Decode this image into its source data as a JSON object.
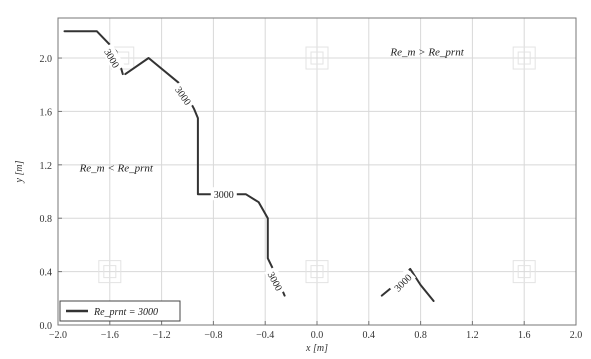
{
  "chart_data": {
    "type": "line",
    "title": "",
    "xlabel": "x [m]",
    "ylabel": "y [m]",
    "xlim": [
      -2.0,
      2.0
    ],
    "ylim": [
      0.0,
      2.3
    ],
    "xticks": [
      -2.0,
      -1.6,
      -1.2,
      -0.8,
      -0.4,
      0.0,
      0.4,
      0.8,
      1.2,
      1.6,
      2.0
    ],
    "yticks": [
      0.0,
      0.4,
      0.8,
      1.2,
      1.6,
      2.0
    ],
    "xtick_labels": [
      "−2.0",
      "−1.6",
      "−1.2",
      "−0.8",
      "−0.4",
      "0.0",
      "0.4",
      "0.8",
      "1.2",
      "1.6",
      "2.0"
    ],
    "ytick_labels": [
      "0.0",
      "0.4",
      "0.8",
      "1.2",
      "1.6",
      "2.0"
    ],
    "grid": true,
    "legend_position": "bottom-left",
    "legend_label": "Re_prnt = 3000",
    "regions": [
      {
        "name": "above",
        "label": "Re_m > Re_prnt",
        "x": 0.85,
        "y": 2.02
      },
      {
        "name": "below",
        "label": "Re_m < Re_prnt",
        "x": -1.55,
        "y": 1.15
      }
    ],
    "series": [
      {
        "contour_level": "3000",
        "points": [
          [
            -1.95,
            2.2
          ],
          [
            -1.7,
            2.2
          ],
          [
            -1.55,
            2.05
          ],
          [
            -1.5,
            1.88
          ]
        ],
        "labels": [
          {
            "text": "3000",
            "x": -1.58,
            "y": 2.0,
            "angle": 60
          }
        ]
      },
      {
        "contour_level": "3000",
        "points": [
          [
            -1.48,
            1.88
          ],
          [
            -1.3,
            2.0
          ],
          [
            -1.05,
            1.8
          ],
          [
            -0.95,
            1.62
          ],
          [
            -0.92,
            1.55
          ],
          [
            -0.92,
            0.98
          ],
          [
            -0.55,
            0.98
          ],
          [
            -0.45,
            0.92
          ],
          [
            -0.38,
            0.8
          ],
          [
            -0.38,
            0.5
          ],
          [
            -0.32,
            0.38
          ],
          [
            -0.25,
            0.22
          ]
        ],
        "labels": [
          {
            "text": "3000",
            "x": -1.03,
            "y": 1.72,
            "angle": 55
          },
          {
            "text": "3000",
            "x": -0.72,
            "y": 0.98,
            "angle": 0
          },
          {
            "text": "3000",
            "x": -0.32,
            "y": 0.33,
            "angle": 62
          }
        ]
      },
      {
        "contour_level": "3000",
        "points": [
          [
            0.5,
            0.22
          ],
          [
            0.6,
            0.3
          ],
          [
            0.72,
            0.42
          ],
          [
            0.8,
            0.3
          ],
          [
            0.9,
            0.18
          ]
        ],
        "labels": [
          {
            "text": "3000",
            "x": 0.66,
            "y": 0.32,
            "angle": -45
          }
        ]
      }
    ]
  }
}
